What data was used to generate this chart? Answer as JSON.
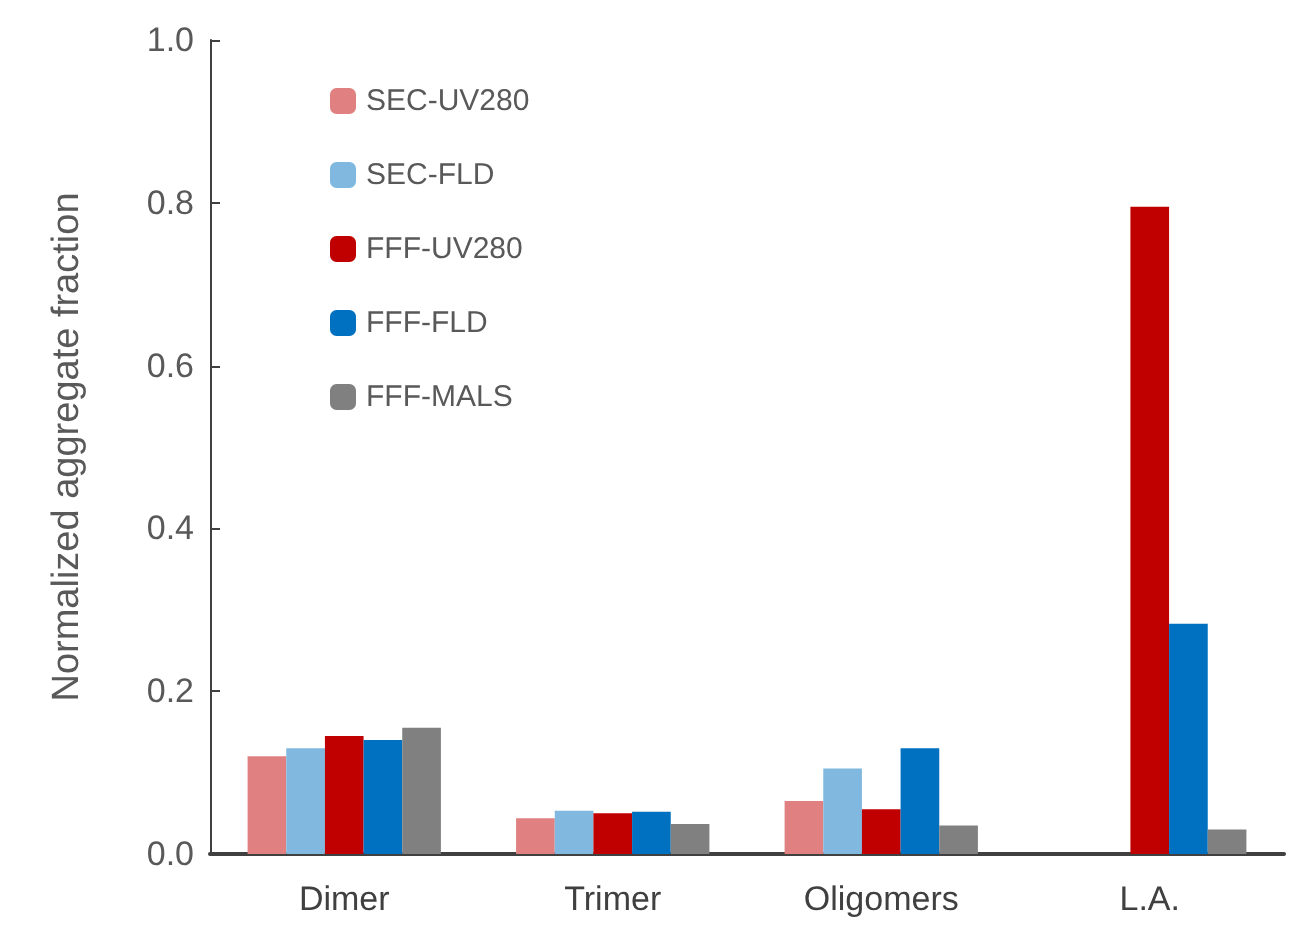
{
  "chart_data": {
    "type": "bar",
    "ylabel": "Normalized aggregate fraction",
    "categories": [
      "Dimer",
      "Trimer",
      "Oligomers",
      "L.A."
    ],
    "series": [
      {
        "name": "SEC-UV280",
        "color": "#e08080",
        "values": [
          0.12,
          0.044,
          0.065,
          null
        ]
      },
      {
        "name": "SEC-FLD",
        "color": "#80b8e0",
        "values": [
          0.13,
          0.053,
          0.105,
          null
        ]
      },
      {
        "name": "FFF-UV280",
        "color": "#c00000",
        "values": [
          0.145,
          0.05,
          0.055,
          0.795
        ]
      },
      {
        "name": "FFF-FLD",
        "color": "#0070c0",
        "values": [
          0.14,
          0.052,
          0.13,
          0.283
        ]
      },
      {
        "name": "FFF-MALS",
        "color": "#808080",
        "values": [
          0.155,
          0.037,
          0.035,
          0.03
        ]
      }
    ],
    "ylim": [
      0,
      1
    ],
    "yticks": [
      {
        "value": 0,
        "label": "0.0"
      },
      0.2,
      0.4,
      0.6,
      0.8,
      {
        "value": 1,
        "label": "1.0"
      }
    ],
    "grid": false,
    "legend": "top left"
  }
}
